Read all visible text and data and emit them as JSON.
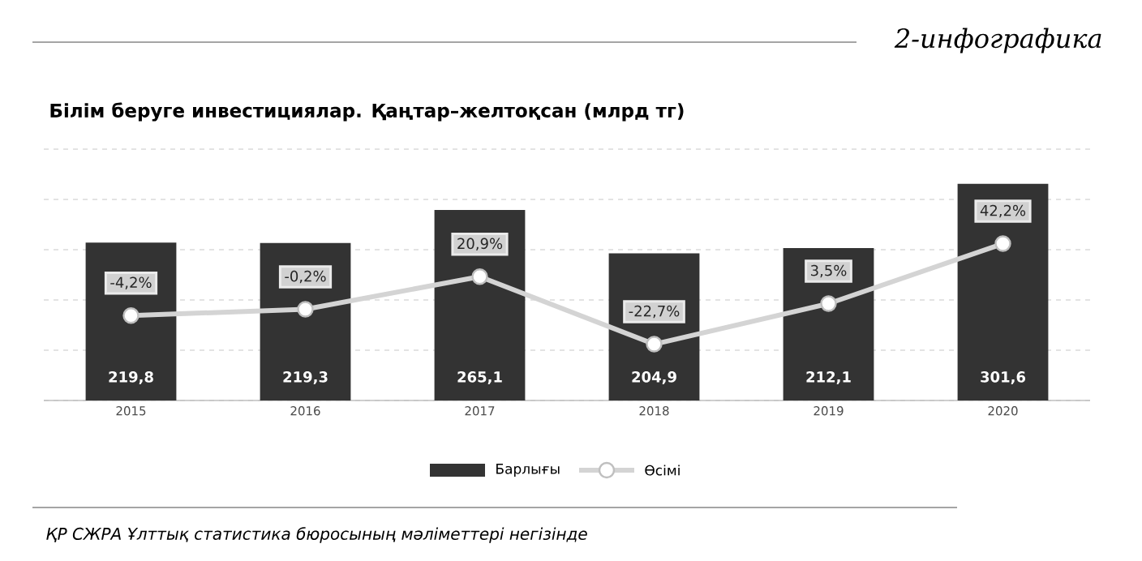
{
  "chart_data": {
    "type": "bar",
    "title": "Білім беруге инвестициялар. Қаңтар–желтоқсан (млрд тг)",
    "categories": [
      "2015",
      "2016",
      "2017",
      "2018",
      "2019",
      "2020"
    ],
    "series": [
      {
        "name": "Барлығы",
        "color": "#333333",
        "values": [
          219.8,
          219.3,
          265.1,
          204.9,
          212.1,
          301.6
        ],
        "value_labels": [
          "219,8",
          "219,3",
          "265,1",
          "204,9",
          "212,1",
          "301,6"
        ]
      },
      {
        "name": "Өсімі",
        "type": "line",
        "axis": "y2",
        "color": "#d4d4d4",
        "marker": "circle",
        "line_style": "solid",
        "values": [
          -4.2,
          -0.2,
          20.9,
          -22.7,
          3.5,
          42.2
        ],
        "value_labels": [
          "-4,2%",
          "-0,2%",
          "20,9%",
          "-22,7%",
          "3,5%",
          "42,2%"
        ]
      }
    ],
    "grid": "y",
    "legend": "bottom",
    "tick_labels": "x",
    "annotations": [
      "2-инфографика",
      "ҚР СЖРА Ұлттық статистика бюросының мәліметтері негізінде"
    ]
  }
}
